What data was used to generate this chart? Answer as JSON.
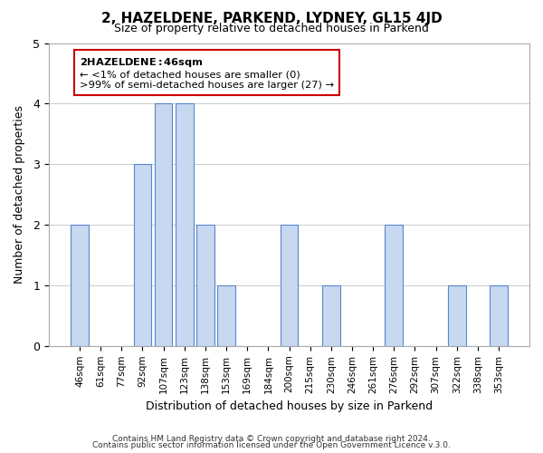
{
  "title": "2, HAZELDENE, PARKEND, LYDNEY, GL15 4JD",
  "subtitle": "Size of property relative to detached houses in Parkend",
  "xlabel": "Distribution of detached houses by size in Parkend",
  "ylabel": "Number of detached properties",
  "categories": [
    "46sqm",
    "61sqm",
    "77sqm",
    "92sqm",
    "107sqm",
    "123sqm",
    "138sqm",
    "153sqm",
    "169sqm",
    "184sqm",
    "200sqm",
    "215sqm",
    "230sqm",
    "246sqm",
    "261sqm",
    "276sqm",
    "292sqm",
    "307sqm",
    "322sqm",
    "338sqm",
    "353sqm"
  ],
  "values": [
    2,
    0,
    0,
    3,
    4,
    4,
    2,
    1,
    0,
    0,
    2,
    0,
    1,
    0,
    0,
    2,
    0,
    0,
    1,
    0,
    1
  ],
  "highlight_index": 0,
  "bar_color": "#c8d8f0",
  "highlight_color": "#c8d8f0",
  "bar_edge_color": "#5588cc",
  "ylim": [
    0,
    5
  ],
  "yticks": [
    0,
    1,
    2,
    3,
    4,
    5
  ],
  "annotation_title": "2 HAZELDENE: 46sqm",
  "annotation_line1": "← <1% of detached houses are smaller (0)",
  "annotation_line2": ">99% of semi-detached houses are larger (27) →",
  "annotation_box_color": "#ffffff",
  "annotation_box_edge": "#cc0000",
  "footer_line1": "Contains HM Land Registry data © Crown copyright and database right 2024.",
  "footer_line2": "Contains public sector information licensed under the Open Government Licence v.3.0."
}
